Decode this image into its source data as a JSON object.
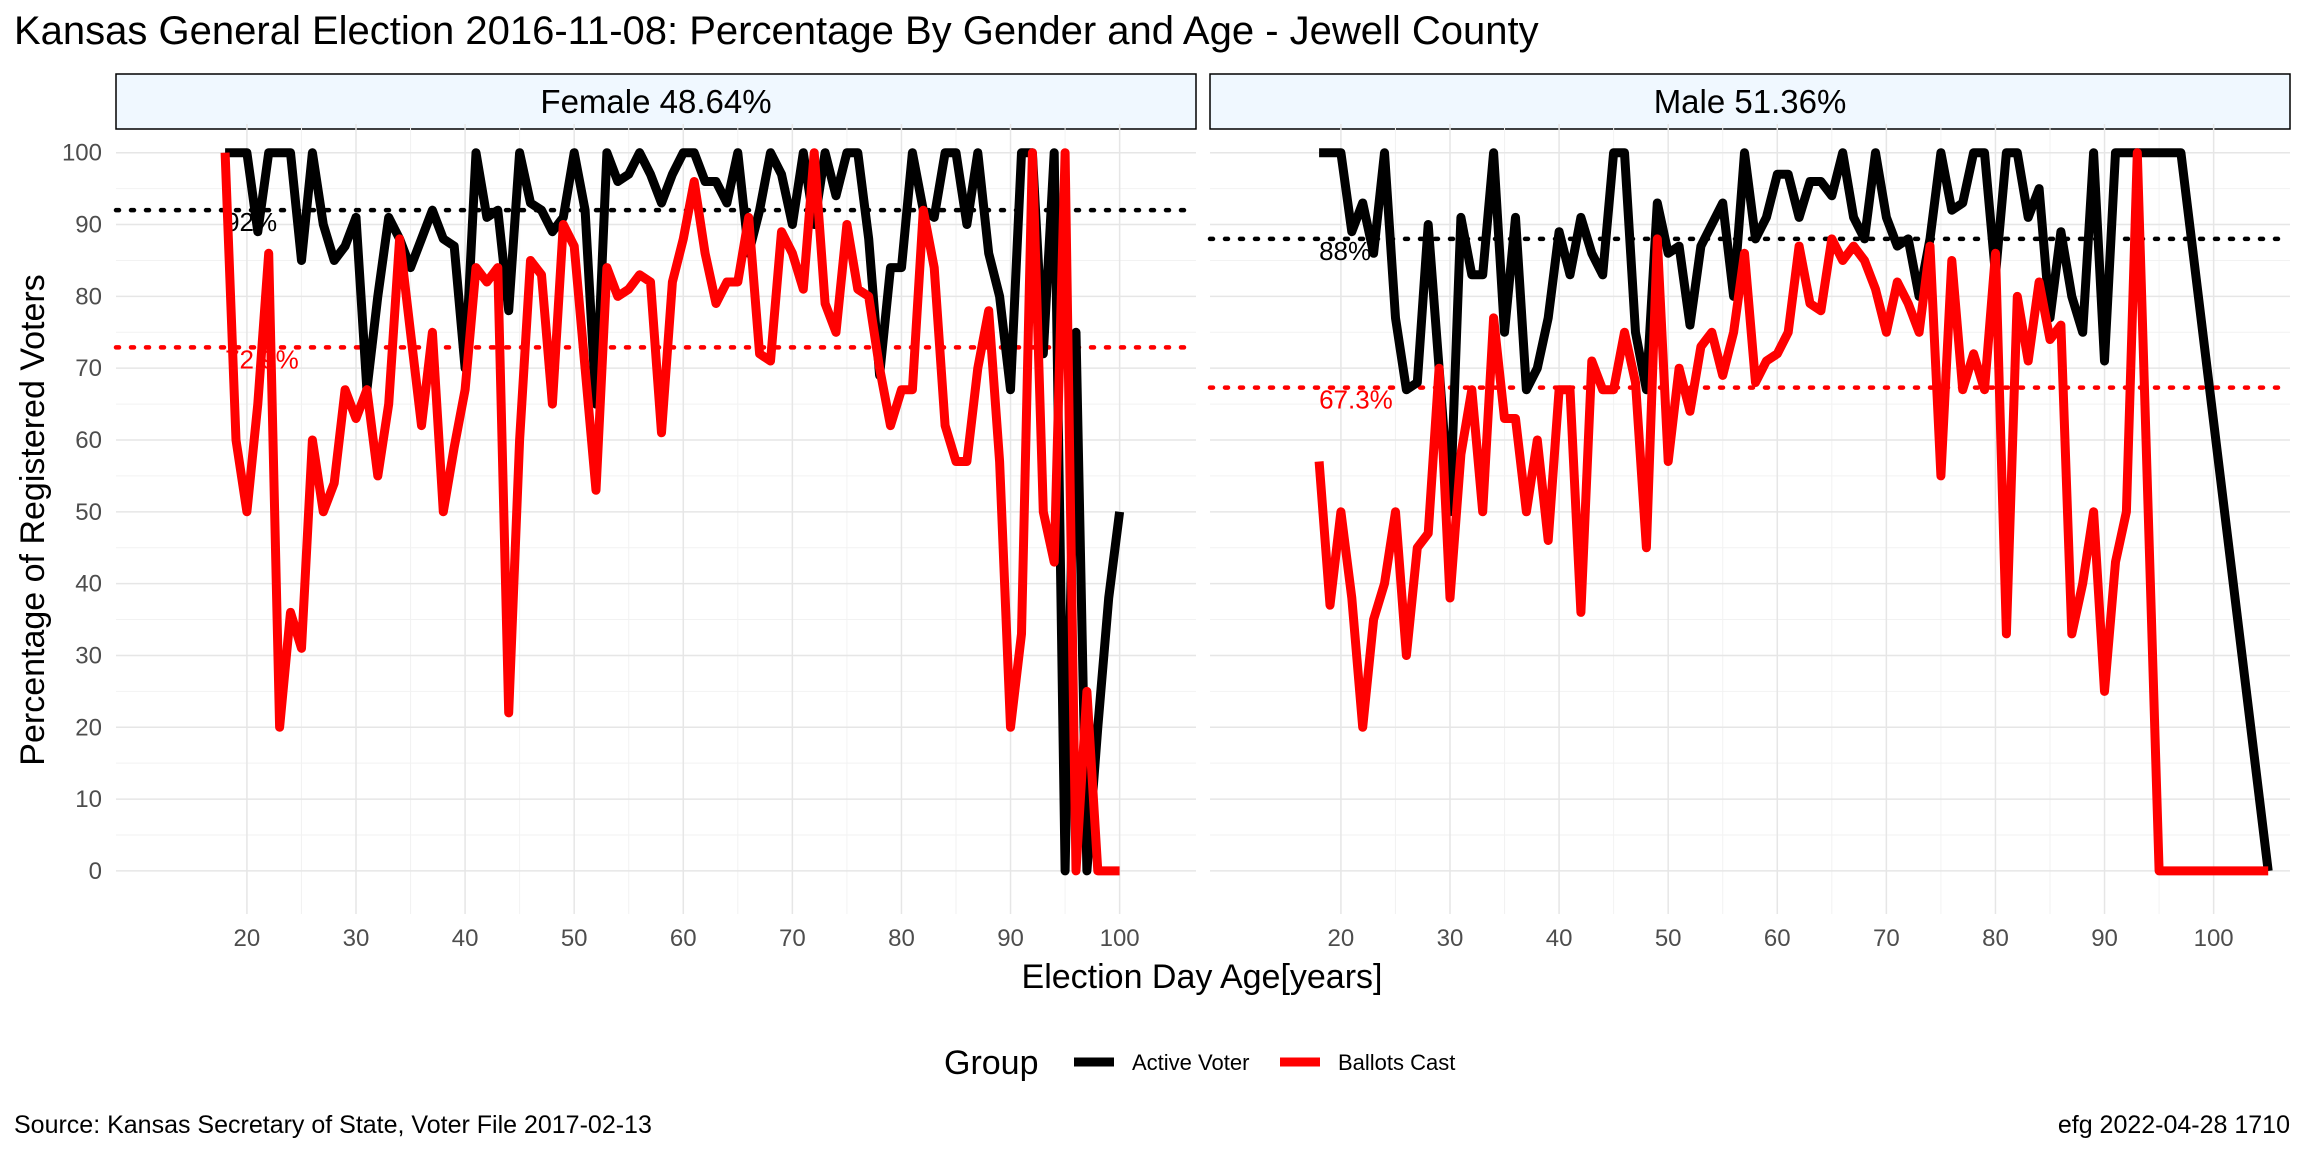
{
  "chart_data": {
    "type": "line",
    "title": "Kansas General Election 2016-11-08:  Percentage By Gender and Age - Jewell County",
    "xlabel": "Election Day Age[years]",
    "ylabel": "Percentage of Registered Voters",
    "xlim": [
      8,
      107
    ],
    "ylim": [
      -6,
      104
    ],
    "x_ticks": [
      20,
      30,
      40,
      50,
      60,
      70,
      80,
      90,
      100
    ],
    "y_ticks": [
      0,
      10,
      20,
      30,
      40,
      50,
      60,
      70,
      80,
      90,
      100
    ],
    "grid": true,
    "legend": {
      "title": "Group",
      "position": "bottom",
      "items": [
        {
          "label": "Active Voter",
          "color": "#000000"
        },
        {
          "label": "Ballots Cast",
          "color": "#ff0000"
        }
      ]
    },
    "caption_left": "Source:  Kansas Secretary of State, Voter File  2017-02-13",
    "caption_right": "efg 2022-04-28 1710",
    "panels": [
      {
        "strip": "Female 48.64%",
        "reference_lines": [
          {
            "series": "Active Voter",
            "value": 92,
            "label": "92%",
            "color": "#000000"
          },
          {
            "series": "Ballots Cast",
            "value": 72.9,
            "label": "72.9%",
            "color": "#ff0000"
          }
        ],
        "series": [
          {
            "name": "Active Voter",
            "color": "#000000",
            "x": [
              18,
              19,
              20,
              21,
              22,
              23,
              24,
              25,
              26,
              27,
              28,
              29,
              30,
              31,
              32,
              33,
              34,
              35,
              36,
              37,
              38,
              39,
              40,
              41,
              42,
              43,
              44,
              45,
              46,
              47,
              48,
              49,
              50,
              51,
              52,
              53,
              54,
              55,
              56,
              57,
              58,
              59,
              60,
              61,
              62,
              63,
              64,
              65,
              66,
              67,
              68,
              69,
              70,
              71,
              72,
              73,
              74,
              75,
              76,
              77,
              78,
              79,
              80,
              81,
              82,
              83,
              84,
              85,
              86,
              87,
              88,
              89,
              90,
              91,
              92,
              93,
              94,
              95,
              96,
              97,
              98,
              99,
              100
            ],
            "y": [
              100,
              100,
              100,
              89,
              100,
              100,
              100,
              85,
              100,
              90,
              85,
              87,
              91,
              67,
              80,
              91,
              88,
              84,
              88,
              92,
              88,
              87,
              70,
              100,
              91,
              92,
              78,
              100,
              93,
              92,
              89,
              91,
              100,
              92,
              65,
              100,
              96,
              97,
              100,
              97,
              93,
              97,
              100,
              100,
              96,
              96,
              93,
              100,
              86,
              92,
              100,
              97,
              90,
              100,
              90,
              100,
              94,
              100,
              100,
              88,
              69,
              84,
              84,
              100,
              92,
              91,
              100,
              100,
              90,
              100,
              86,
              80,
              67,
              100,
              100,
              72,
              100,
              0,
              75,
              0,
              20,
              38,
              50
            ]
          },
          {
            "name": "Ballots Cast",
            "color": "#ff0000",
            "x": [
              18,
              19,
              20,
              21,
              22,
              23,
              24,
              25,
              26,
              27,
              28,
              29,
              30,
              31,
              32,
              33,
              34,
              35,
              36,
              37,
              38,
              39,
              40,
              41,
              42,
              43,
              44,
              45,
              46,
              47,
              48,
              49,
              50,
              51,
              52,
              53,
              54,
              55,
              56,
              57,
              58,
              59,
              60,
              61,
              62,
              63,
              64,
              65,
              66,
              67,
              68,
              69,
              70,
              71,
              72,
              73,
              74,
              75,
              76,
              77,
              78,
              79,
              80,
              81,
              82,
              83,
              84,
              85,
              86,
              87,
              88,
              89,
              90,
              91,
              92,
              93,
              94,
              95,
              96,
              97,
              98,
              99,
              100
            ],
            "y": [
              100,
              60,
              50,
              65,
              86,
              20,
              36,
              31,
              60,
              50,
              54,
              67,
              63,
              67,
              55,
              65,
              88,
              75,
              62,
              75,
              50,
              59,
              67,
              84,
              82,
              84,
              22,
              60,
              85,
              83,
              65,
              90,
              87,
              70,
              53,
              84,
              80,
              81,
              83,
              82,
              61,
              82,
              88,
              96,
              86,
              79,
              82,
              82,
              91,
              72,
              71,
              89,
              86,
              81,
              100,
              79,
              75,
              90,
              81,
              80,
              70,
              62,
              67,
              67,
              92,
              84,
              62,
              57,
              57,
              70,
              78,
              57,
              20,
              33,
              100,
              50,
              43,
              100,
              0,
              25,
              0,
              0,
              0
            ]
          }
        ]
      },
      {
        "strip": "Male 51.36%",
        "reference_lines": [
          {
            "series": "Active Voter",
            "value": 88,
            "label": "88%",
            "color": "#000000"
          },
          {
            "series": "Ballots Cast",
            "value": 67.3,
            "label": "67.3%",
            "color": "#ff0000"
          }
        ],
        "series": [
          {
            "name": "Active Voter",
            "color": "#000000",
            "x": [
              18,
              19,
              20,
              21,
              22,
              23,
              24,
              25,
              26,
              27,
              28,
              29,
              30,
              31,
              32,
              33,
              34,
              35,
              36,
              37,
              38,
              39,
              40,
              41,
              42,
              43,
              44,
              45,
              46,
              47,
              48,
              49,
              50,
              51,
              52,
              53,
              54,
              55,
              56,
              57,
              58,
              59,
              60,
              61,
              62,
              63,
              64,
              65,
              66,
              67,
              68,
              69,
              70,
              71,
              72,
              73,
              74,
              75,
              76,
              77,
              78,
              79,
              80,
              81,
              82,
              83,
              84,
              85,
              86,
              87,
              88,
              89,
              90,
              91,
              92,
              93,
              94,
              95,
              96,
              97,
              105
            ],
            "y": [
              100,
              100,
              100,
              89,
              93,
              86,
              100,
              77,
              67,
              68,
              90,
              70,
              50,
              91,
              83,
              83,
              100,
              75,
              91,
              67,
              70,
              77,
              89,
              83,
              91,
              86,
              83,
              100,
              100,
              75,
              67,
              93,
              86,
              87,
              76,
              87,
              90,
              93,
              80,
              100,
              88,
              91,
              97,
              97,
              91,
              96,
              96,
              94,
              100,
              91,
              88,
              100,
              91,
              87,
              88,
              80,
              88,
              100,
              92,
              93,
              100,
              100,
              83,
              100,
              100,
              91,
              95,
              77,
              89,
              80,
              75,
              100,
              71,
              100,
              100,
              100,
              100,
              100,
              100,
              100,
              0
            ]
          },
          {
            "name": "Ballots Cast",
            "color": "#ff0000",
            "x": [
              18,
              19,
              20,
              21,
              22,
              23,
              24,
              25,
              26,
              27,
              28,
              29,
              30,
              31,
              32,
              33,
              34,
              35,
              36,
              37,
              38,
              39,
              40,
              41,
              42,
              43,
              44,
              45,
              46,
              47,
              48,
              49,
              50,
              51,
              52,
              53,
              54,
              55,
              56,
              57,
              58,
              59,
              60,
              61,
              62,
              63,
              64,
              65,
              66,
              67,
              68,
              69,
              70,
              71,
              72,
              73,
              74,
              75,
              76,
              77,
              78,
              79,
              80,
              81,
              82,
              83,
              84,
              85,
              86,
              87,
              88,
              89,
              90,
              91,
              92,
              93,
              94,
              95,
              96,
              97,
              105
            ],
            "y": [
              57,
              37,
              50,
              38,
              20,
              35,
              40,
              50,
              30,
              45,
              47,
              70,
              38,
              58,
              67,
              50,
              77,
              63,
              63,
              50,
              60,
              46,
              67,
              67,
              36,
              71,
              67,
              67,
              75,
              68,
              45,
              88,
              57,
              70,
              64,
              73,
              75,
              69,
              75,
              86,
              68,
              71,
              72,
              75,
              87,
              79,
              78,
              88,
              85,
              87,
              85,
              81,
              75,
              82,
              79,
              75,
              87,
              55,
              85,
              67,
              72,
              67,
              86,
              33,
              80,
              71,
              82,
              74,
              76,
              33,
              40,
              50,
              25,
              43,
              50,
              100,
              50,
              0,
              0,
              0,
              0
            ]
          }
        ]
      }
    ]
  }
}
